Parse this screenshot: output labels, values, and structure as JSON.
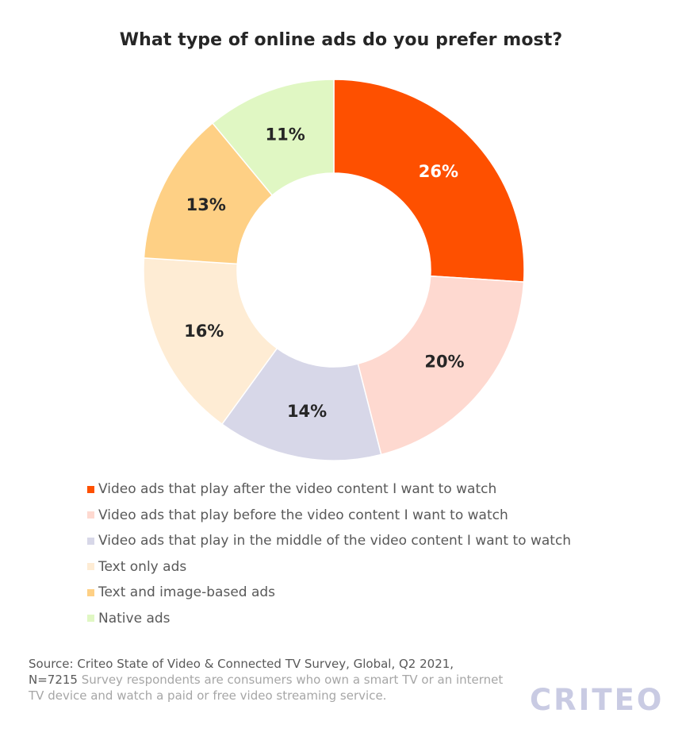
{
  "chart_data": {
    "type": "pie",
    "title": "What type of online ads do you prefer most?",
    "categories": [
      "Video ads that play after the video content I want to watch",
      "Video ads that play before the video content I want to watch",
      "Video ads that play in the middle of the video content I want to watch",
      "Text only ads",
      "Text and image-based ads",
      "Native ads"
    ],
    "values": [
      26,
      20,
      14,
      16,
      13,
      11
    ],
    "labels": [
      "26%",
      "20%",
      "14%",
      "16%",
      "13%",
      "11%"
    ],
    "colors": [
      "#fe5000",
      "#fed9d0",
      "#d7d7e8",
      "#feecd4",
      "#fed085",
      "#e0f7c3"
    ],
    "label_colors": [
      "#ffffff",
      "#262626",
      "#262626",
      "#262626",
      "#262626",
      "#262626"
    ],
    "donut": true,
    "legend_position": "bottom"
  },
  "footer": {
    "source": "Source: Criteo State of Video & Connected TV Survey, Global, Q2 2021, N=7215",
    "note": "Survey respondents are consumers who own a smart TV or an internet TV device and watch a paid or free video streaming service."
  },
  "logo": {
    "text": "CRITEO"
  }
}
